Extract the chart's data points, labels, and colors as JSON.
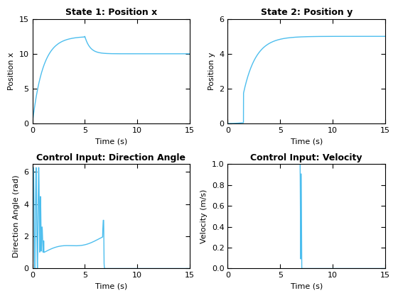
{
  "title1": "State 1: Position x",
  "xlabel1": "Time (s)",
  "ylabel1": "Position x",
  "xlim1": [
    0,
    15
  ],
  "ylim1": [
    0,
    15
  ],
  "title2": "State 2: Position y",
  "xlabel2": "Time (s)",
  "ylabel2": "Position y",
  "xlim2": [
    0,
    15
  ],
  "ylim2": [
    0,
    6
  ],
  "title3": "Control Input: Direction Angle",
  "xlabel3": "Time (s)",
  "ylabel3": "Direction Angle (rad)",
  "xlim3": [
    0,
    15
  ],
  "ylim3": [
    0,
    6.5
  ],
  "title4": "Control Input: Velocity",
  "xlabel4": "Time (s)",
  "ylabel4": "Velocity (m/s)",
  "xlim4": [
    0,
    15
  ],
  "ylim4": [
    0,
    1.0
  ],
  "line_color": "#4DBEEE",
  "background_color": "#ffffff",
  "title_fontsize": 9,
  "label_fontsize": 8,
  "tick_fontsize": 8
}
